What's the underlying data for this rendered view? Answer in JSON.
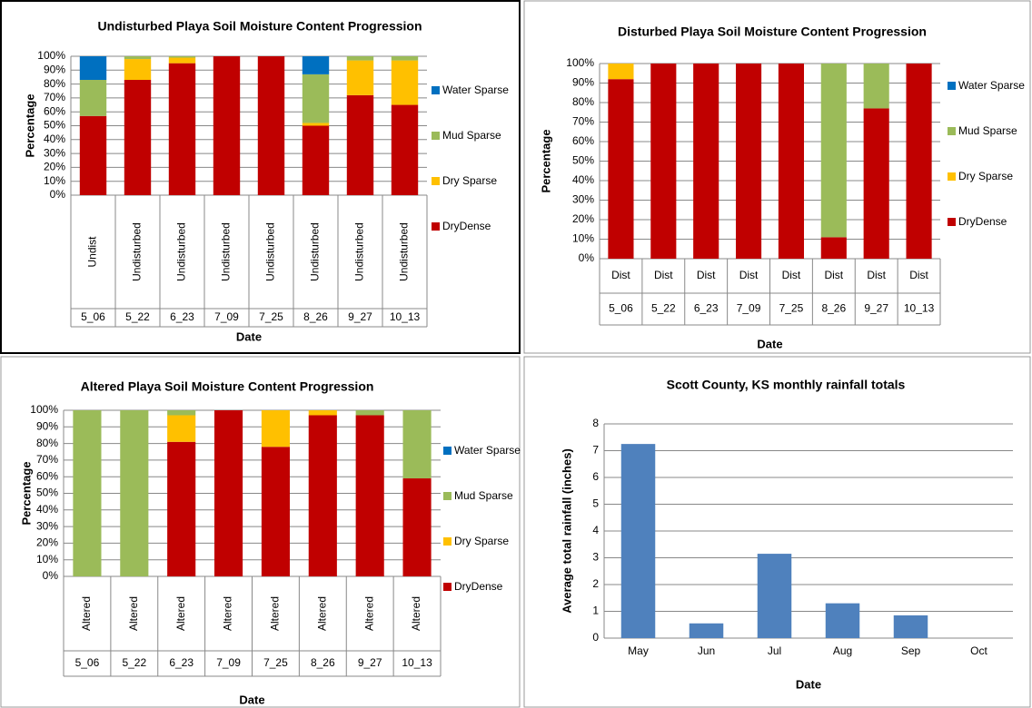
{
  "chart_data": [
    {
      "type": "bar",
      "stacked": true,
      "title": "Undisturbed Playa Soil Moisture Content Progression",
      "x_label": "Date",
      "y_label": "Percentage",
      "categories": [
        "Undist",
        "Undisturbed",
        "Undisturbed",
        "Undisturbed",
        "Undisturbed",
        "Undisturbed",
        "Undisturbed",
        "Undisturbed"
      ],
      "category_groups": [
        "5_06",
        "5_22",
        "6_23",
        "7_09",
        "7_25",
        "8_26",
        "9_27",
        "10_13"
      ],
      "series": [
        {
          "name": "DryDense",
          "color": "#c00000",
          "values": [
            57,
            83,
            95,
            100,
            100,
            50,
            72,
            65
          ]
        },
        {
          "name": "Dry Sparse",
          "color": "#ffc000",
          "values": [
            0,
            15,
            4,
            0,
            0,
            2,
            25,
            32
          ]
        },
        {
          "name": "Mud Sparse",
          "color": "#9bbb59",
          "values": [
            26,
            2,
            1,
            0,
            0,
            35,
            3,
            3
          ]
        },
        {
          "name": "Water Sparse",
          "color": "#0070c0",
          "values": [
            17,
            0,
            0,
            0,
            0,
            13,
            0,
            0
          ]
        }
      ],
      "ylim": [
        0,
        100
      ],
      "yticks": [
        {
          "value": 0,
          "label": "0%"
        },
        {
          "value": 10,
          "label": "10%"
        },
        {
          "value": 20,
          "label": "20%"
        },
        {
          "value": 30,
          "label": "30%"
        },
        {
          "value": 40,
          "label": "40%"
        },
        {
          "value": 50,
          "label": "50%"
        },
        {
          "value": 60,
          "label": "60%"
        },
        {
          "value": 70,
          "label": "70%"
        },
        {
          "value": 80,
          "label": "80%"
        },
        {
          "value": 90,
          "label": "90%"
        },
        {
          "value": 100,
          "label": "100%"
        }
      ],
      "grid": true,
      "legend": "right"
    },
    {
      "type": "bar",
      "stacked": true,
      "title": "Disturbed Playa Soil Moisture Content Progression",
      "x_label": "Date",
      "y_label": "Percentage",
      "categories": [
        "Dist",
        "Dist",
        "Dist",
        "Dist",
        "Dist",
        "Dist",
        "Dist",
        "Dist"
      ],
      "category_groups": [
        "5_06",
        "5_22",
        "6_23",
        "7_09",
        "7_25",
        "8_26",
        "9_27",
        "10_13"
      ],
      "series": [
        {
          "name": "DryDense",
          "color": "#c00000",
          "values": [
            92,
            100,
            100,
            100,
            100,
            11,
            77,
            100
          ]
        },
        {
          "name": "Dry Sparse",
          "color": "#ffc000",
          "values": [
            8,
            0,
            0,
            0,
            0,
            0,
            0,
            0
          ]
        },
        {
          "name": "Mud Sparse",
          "color": "#9bbb59",
          "values": [
            0,
            0,
            0,
            0,
            0,
            89,
            23,
            0
          ]
        },
        {
          "name": "Water Sparse",
          "color": "#0070c0",
          "values": [
            0,
            0,
            0,
            0,
            0,
            0,
            0,
            0
          ]
        }
      ],
      "ylim": [
        0,
        100
      ],
      "yticks": [
        {
          "value": 0,
          "label": "0%"
        },
        {
          "value": 10,
          "label": "10%"
        },
        {
          "value": 20,
          "label": "20%"
        },
        {
          "value": 30,
          "label": "30%"
        },
        {
          "value": 40,
          "label": "40%"
        },
        {
          "value": 50,
          "label": "50%"
        },
        {
          "value": 60,
          "label": "60%"
        },
        {
          "value": 70,
          "label": "70%"
        },
        {
          "value": 80,
          "label": "80%"
        },
        {
          "value": 90,
          "label": "90%"
        },
        {
          "value": 100,
          "label": "100%"
        }
      ],
      "grid": true,
      "legend": "right"
    },
    {
      "type": "bar",
      "stacked": true,
      "title": "Altered Playa Soil Moisture Content Progression",
      "x_label": "Date",
      "y_label": "Percentage",
      "categories": [
        "Altered",
        "Altered",
        "Altered",
        "Altered",
        "Altered",
        "Altered",
        "Altered",
        "Altered"
      ],
      "category_groups": [
        "5_06",
        "5_22",
        "6_23",
        "7_09",
        "7_25",
        "8_26",
        "9_27",
        "10_13"
      ],
      "series": [
        {
          "name": "DryDense",
          "color": "#c00000",
          "values": [
            0,
            0,
            81,
            100,
            78,
            97,
            97,
            59
          ]
        },
        {
          "name": "Dry Sparse",
          "color": "#ffc000",
          "values": [
            0,
            0,
            16,
            0,
            22,
            3,
            0,
            0
          ]
        },
        {
          "name": "Mud Sparse",
          "color": "#9bbb59",
          "values": [
            100,
            100,
            3,
            0,
            0,
            0,
            3,
            41
          ]
        },
        {
          "name": "Water Sparse",
          "color": "#0070c0",
          "values": [
            0,
            0,
            0,
            0,
            0,
            0,
            0,
            0
          ]
        }
      ],
      "ylim": [
        0,
        100
      ],
      "yticks": [
        {
          "value": 0,
          "label": "0%"
        },
        {
          "value": 10,
          "label": "10%"
        },
        {
          "value": 20,
          "label": "20%"
        },
        {
          "value": 30,
          "label": "30%"
        },
        {
          "value": 40,
          "label": "40%"
        },
        {
          "value": 50,
          "label": "50%"
        },
        {
          "value": 60,
          "label": "60%"
        },
        {
          "value": 70,
          "label": "70%"
        },
        {
          "value": 80,
          "label": "80%"
        },
        {
          "value": 90,
          "label": "90%"
        },
        {
          "value": 100,
          "label": "100%"
        }
      ],
      "grid": true,
      "legend": "right"
    },
    {
      "type": "bar",
      "title": "Scott County, KS monthly rainfall totals",
      "x_label": "Date",
      "y_label": "Average total rainfall (inches)",
      "categories": [
        "May",
        "Jun",
        "Jul",
        "Aug",
        "Sep",
        "Oct"
      ],
      "values": [
        7.25,
        0.55,
        3.15,
        1.3,
        0.85,
        0
      ],
      "color": "#4f81bd",
      "ylim": [
        0,
        8
      ],
      "yticks": [
        0,
        1,
        2,
        3,
        4,
        5,
        6,
        7,
        8
      ],
      "grid": true
    }
  ]
}
